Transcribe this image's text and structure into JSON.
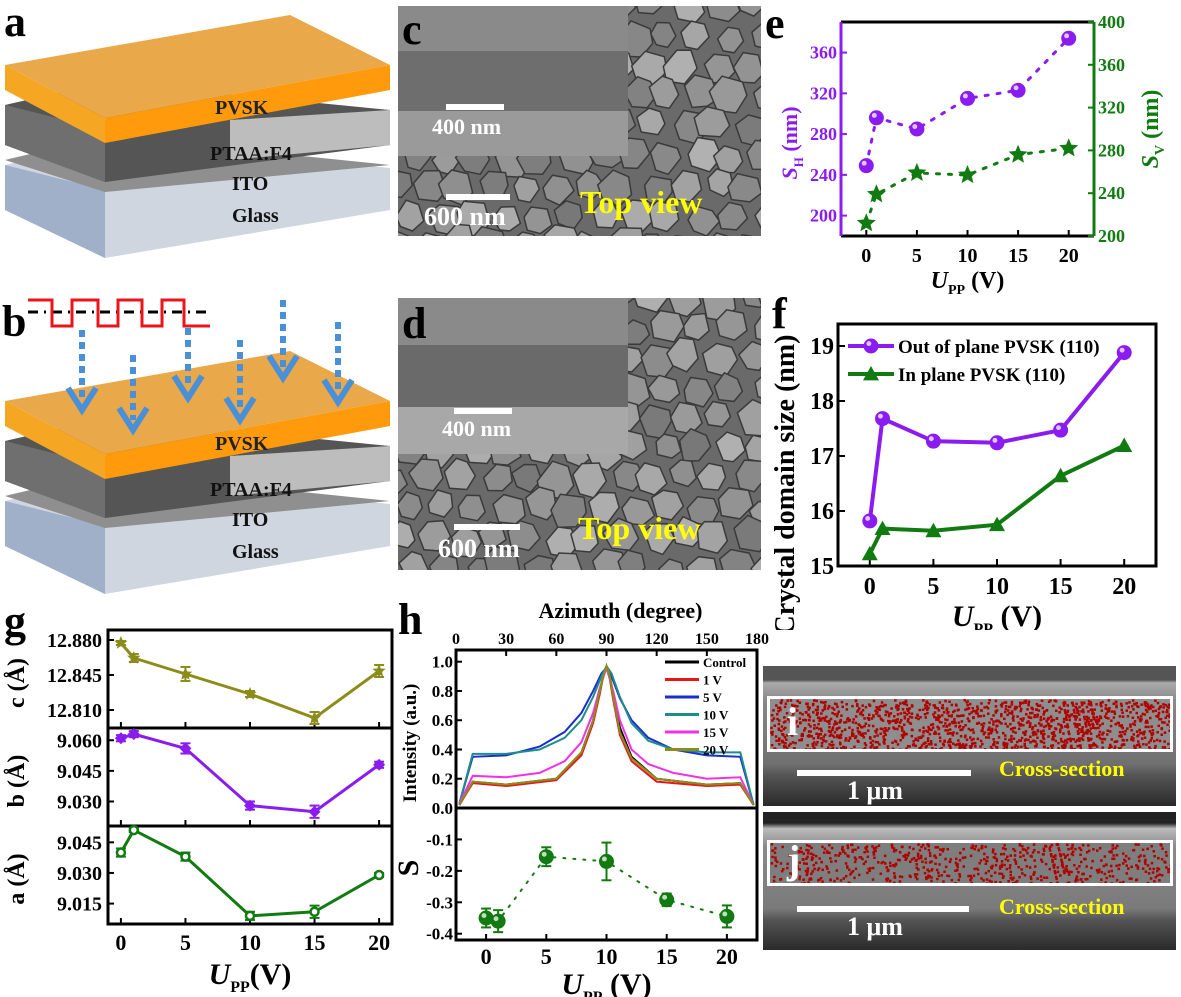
{
  "panels": {
    "a": {
      "label": "a",
      "layers": [
        "PVSK",
        "PTAA:F4",
        "ITO",
        "Glass"
      ]
    },
    "b": {
      "label": "b",
      "layers": [
        "PVSK",
        "PTAA:F4",
        "ITO",
        "Glass"
      ],
      "arrows_count": 6
    },
    "c": {
      "label": "c",
      "inset_scale": "400 nm",
      "main_scale": "600 nm",
      "view_label": "Top view"
    },
    "d": {
      "label": "d",
      "inset_scale": "400 nm",
      "main_scale": "600 nm",
      "view_label": "Top view"
    },
    "e": {
      "label": "e"
    },
    "f": {
      "label": "f"
    },
    "g": {
      "label": "g"
    },
    "h": {
      "label": "h"
    },
    "i": {
      "label": "i",
      "scale": "1 μm",
      "view_label": "Cross-section"
    },
    "j": {
      "label": "j",
      "scale": "1 μm",
      "view_label": "Cross-section"
    }
  },
  "colors": {
    "purple": "#8B1CF0",
    "green": "#117A11",
    "olive": "#8C8C1A",
    "orange": "#F5A623",
    "yellow": "#FFFF00"
  },
  "chart_data": [
    {
      "id": "e",
      "type": "scatter",
      "xlabel": "U_PP (V)",
      "ylabel_left": "S_H (nm)",
      "ylabel_right": "S_V (nm)",
      "xlim": [
        -2.5,
        22.5
      ],
      "xticks": [
        0,
        5,
        10,
        15,
        20
      ],
      "ylim_left": [
        180,
        390
      ],
      "yticks_left": [
        200,
        240,
        280,
        320,
        360
      ],
      "ylim_right": [
        200,
        400
      ],
      "yticks_right": [
        200,
        240,
        280,
        320,
        360,
        400
      ],
      "series": [
        {
          "name": "S_H",
          "axis": "left",
          "marker": "sphere",
          "line": "dotted",
          "color": "#8B1CF0",
          "x": [
            0,
            1,
            5,
            10,
            15,
            20
          ],
          "y": [
            249,
            296,
            285,
            315,
            323,
            374
          ]
        },
        {
          "name": "S_V",
          "axis": "right",
          "marker": "star",
          "line": "dotted",
          "color": "#117A11",
          "x": [
            0,
            1,
            5,
            10,
            15,
            20
          ],
          "y": [
            212,
            239,
            259,
            257,
            276,
            282
          ]
        }
      ]
    },
    {
      "id": "f",
      "type": "line",
      "xlabel": "U_PP (V)",
      "ylabel": "Crystal domain size (nm)",
      "xlim": [
        -2.5,
        22.5
      ],
      "xticks": [
        0,
        5,
        10,
        15,
        20
      ],
      "ylim": [
        15,
        19.4
      ],
      "yticks": [
        15,
        16,
        17,
        18,
        19
      ],
      "legend_position": "top-left",
      "series": [
        {
          "name": "Out of plane PVSK (110)",
          "marker": "sphere",
          "color": "#8B1CF0",
          "x": [
            0,
            1,
            5,
            10,
            15,
            20
          ],
          "y": [
            15.82,
            17.68,
            17.27,
            17.24,
            17.47,
            18.88
          ]
        },
        {
          "name": "In plane PVSK (110)",
          "marker": "triangle",
          "color": "#117A11",
          "x": [
            0,
            1,
            5,
            10,
            15,
            20
          ],
          "y": [
            15.22,
            15.68,
            15.64,
            15.75,
            16.64,
            17.19
          ]
        }
      ]
    },
    {
      "id": "g",
      "type": "line",
      "xlabel": "U_PP (V)",
      "xlim": [
        -1,
        21
      ],
      "xticks": [
        0,
        5,
        10,
        15,
        20
      ],
      "subplots": [
        {
          "ylabel": "c (Å)",
          "color": "#8C8C1A",
          "marker": "star",
          "ylim": [
            12.792,
            12.89
          ],
          "yticks": [
            "12.880",
            "12.845",
            "12.810"
          ],
          "x": [
            0,
            1,
            5,
            10,
            15,
            20
          ],
          "y": [
            12.877,
            12.862,
            12.846,
            12.826,
            12.802,
            12.849
          ],
          "err": [
            0.002,
            0.004,
            0.007,
            0.003,
            0.006,
            0.006
          ]
        },
        {
          "ylabel": "b (Å)",
          "color": "#8B1CF0",
          "marker": "diamond",
          "ylim": [
            9.018,
            9.066
          ],
          "yticks": [
            "9.060",
            "9.045",
            "9.030"
          ],
          "x": [
            0,
            1,
            5,
            10,
            15,
            20
          ],
          "y": [
            9.061,
            9.063,
            9.056,
            9.028,
            9.025,
            9.048
          ],
          "err": [
            0.0015,
            0.0015,
            0.0025,
            0.002,
            0.003,
            0.0015
          ]
        },
        {
          "ylabel": "a (Å)",
          "color": "#117A11",
          "marker": "circle",
          "ylim": [
            9.005,
            9.053
          ],
          "yticks": [
            "9.045",
            "9.030",
            "9.015"
          ],
          "x": [
            0,
            1,
            5,
            10,
            15,
            20
          ],
          "y": [
            9.04,
            9.051,
            9.038,
            9.009,
            9.011,
            9.029
          ],
          "err": [
            0.002,
            0.001,
            0.002,
            0.002,
            0.003,
            0.001
          ]
        }
      ]
    },
    {
      "id": "h-top",
      "type": "line",
      "title": "Azimuth (degree)",
      "xlabel": "Azimuth (degree)",
      "ylabel": "Intensity (a.u.)",
      "xlim": [
        0,
        180
      ],
      "xticks": [
        0,
        30,
        60,
        90,
        120,
        150,
        180
      ],
      "ylim": [
        0,
        1.08
      ],
      "yticks": [
        "0.0",
        "0.2",
        "0.4",
        "0.6",
        "0.8",
        "1.0"
      ],
      "legend_position": "top-right",
      "series": [
        {
          "name": "Control",
          "color": "#000000",
          "x": [
            2,
            10,
            30,
            60,
            75,
            82,
            86,
            88,
            90,
            92,
            94,
            98,
            105,
            120,
            150,
            170,
            178
          ],
          "y": [
            0.02,
            0.18,
            0.16,
            0.2,
            0.38,
            0.6,
            0.8,
            0.9,
            0.97,
            0.9,
            0.78,
            0.55,
            0.35,
            0.2,
            0.16,
            0.17,
            0.02
          ]
        },
        {
          "name": "1 V",
          "color": "#E8161B",
          "x": [
            2,
            10,
            30,
            60,
            75,
            82,
            86,
            88,
            90,
            92,
            94,
            98,
            105,
            120,
            150,
            170,
            178
          ],
          "y": [
            0.02,
            0.17,
            0.15,
            0.19,
            0.36,
            0.58,
            0.78,
            0.9,
            0.96,
            0.88,
            0.74,
            0.5,
            0.32,
            0.18,
            0.15,
            0.16,
            0.02
          ]
        },
        {
          "name": "5 V",
          "color": "#1A2ECC",
          "x": [
            2,
            10,
            30,
            50,
            65,
            75,
            82,
            87,
            90,
            93,
            98,
            105,
            115,
            130,
            150,
            170,
            178
          ],
          "y": [
            0.03,
            0.35,
            0.36,
            0.42,
            0.52,
            0.65,
            0.8,
            0.92,
            0.96,
            0.9,
            0.75,
            0.6,
            0.48,
            0.4,
            0.36,
            0.35,
            0.02
          ]
        },
        {
          "name": "10 V",
          "color": "#1F8C8C",
          "x": [
            2,
            10,
            30,
            50,
            65,
            75,
            82,
            87,
            90,
            93,
            98,
            105,
            115,
            130,
            150,
            170,
            178
          ],
          "y": [
            0.03,
            0.37,
            0.37,
            0.4,
            0.48,
            0.6,
            0.76,
            0.9,
            0.97,
            0.92,
            0.76,
            0.58,
            0.46,
            0.4,
            0.38,
            0.38,
            0.02
          ]
        },
        {
          "name": "15 V",
          "color": "#F032E6",
          "x": [
            2,
            10,
            30,
            50,
            65,
            75,
            82,
            86,
            90,
            94,
            98,
            105,
            115,
            130,
            150,
            170,
            178
          ],
          "y": [
            0.03,
            0.22,
            0.21,
            0.24,
            0.32,
            0.45,
            0.65,
            0.82,
            0.96,
            0.8,
            0.6,
            0.4,
            0.3,
            0.24,
            0.2,
            0.21,
            0.02
          ]
        },
        {
          "name": "20 V",
          "color": "#8C8C1A",
          "x": [
            2,
            10,
            30,
            60,
            75,
            82,
            86,
            88,
            90,
            92,
            94,
            98,
            105,
            120,
            150,
            170,
            178
          ],
          "y": [
            0.02,
            0.18,
            0.16,
            0.2,
            0.38,
            0.6,
            0.8,
            0.9,
            0.97,
            0.9,
            0.76,
            0.52,
            0.34,
            0.2,
            0.16,
            0.17,
            0.02
          ]
        }
      ]
    },
    {
      "id": "h-bottom",
      "type": "scatter",
      "xlabel": "U_PP (V)",
      "ylabel": "S",
      "xlim": [
        -2.5,
        22.5
      ],
      "xticks": [
        0,
        5,
        10,
        15,
        20
      ],
      "ylim": [
        -0.42,
        0
      ],
      "yticks": [
        "-0.1",
        "-0.2",
        "-0.3",
        "-0.4"
      ],
      "series": [
        {
          "name": "S",
          "color": "#117A11",
          "marker": "sphere",
          "line": "dotted",
          "x": [
            0,
            1,
            5,
            10,
            15,
            20
          ],
          "y": [
            -0.35,
            -0.36,
            -0.155,
            -0.17,
            -0.292,
            -0.345
          ],
          "err": [
            0.03,
            0.035,
            0.03,
            0.06,
            0.02,
            0.035
          ]
        }
      ]
    }
  ]
}
